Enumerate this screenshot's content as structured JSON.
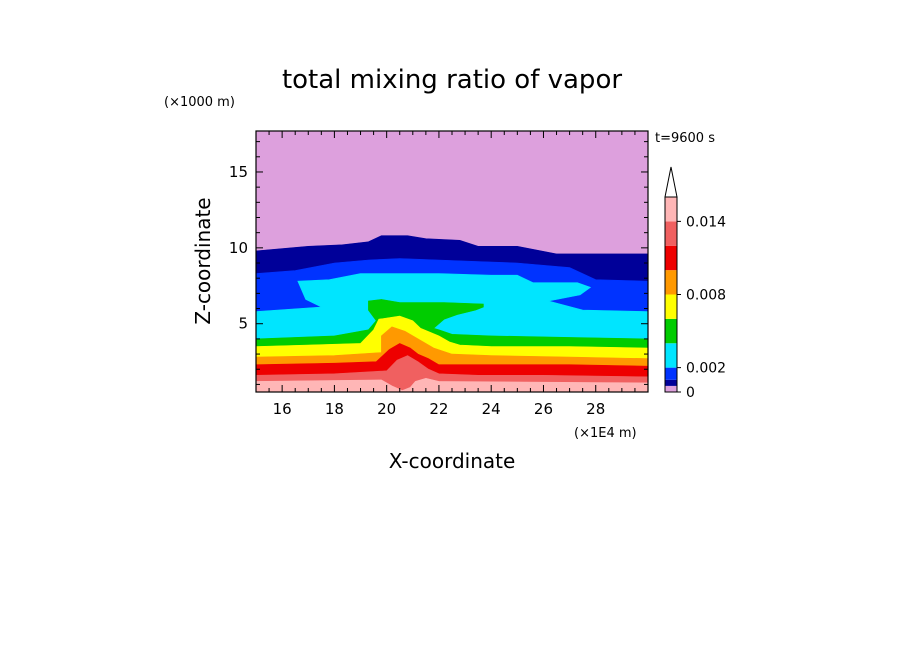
{
  "chart_data": {
    "type": "heatmap",
    "title": "total mixing ratio of vapor",
    "xlabel": "X-coordinate",
    "ylabel": "Z-coordinate",
    "x_unit": "(×1E4 m)",
    "y_unit": "(×1000 m)",
    "time_label": "t=9600 s",
    "xlim": [
      15,
      30
    ],
    "ylim": [
      0.5,
      17.7
    ],
    "x_ticks": [
      16,
      18,
      20,
      22,
      24,
      26,
      28
    ],
    "y_ticks": [
      5,
      10,
      15
    ],
    "grid": false,
    "legend": "colorbar-right",
    "colorbar": {
      "min": 0,
      "max": 0.016,
      "open_top": true,
      "tick_labels": [
        {
          "value": 0,
          "label": "0"
        },
        {
          "value": 0.002,
          "label": "0.002"
        },
        {
          "value": 0.008,
          "label": "0.008"
        },
        {
          "value": 0.014,
          "label": "0.014"
        }
      ],
      "bands": [
        {
          "from": 0,
          "to": 0.0005,
          "color": "#dda0dd"
        },
        {
          "from": 0.0005,
          "to": 0.001,
          "color": "#000099"
        },
        {
          "from": 0.001,
          "to": 0.002,
          "color": "#0033ff"
        },
        {
          "from": 0.002,
          "to": 0.004,
          "color": "#00e5ff"
        },
        {
          "from": 0.004,
          "to": 0.006,
          "color": "#00cc00"
        },
        {
          "from": 0.006,
          "to": 0.008,
          "color": "#ffff00"
        },
        {
          "from": 0.008,
          "to": 0.01,
          "color": "#ff9900"
        },
        {
          "from": 0.01,
          "to": 0.012,
          "color": "#ee0000"
        },
        {
          "from": 0.012,
          "to": 0.014,
          "color": "#f06060"
        },
        {
          "from": 0.014,
          "to": 0.016,
          "color": "#ffb6b6"
        }
      ]
    },
    "regions": [
      {
        "color": "#dda0dd",
        "points": [
          [
            15,
            0.5
          ],
          [
            30,
            0.5
          ],
          [
            30,
            17.7
          ],
          [
            15,
            17.7
          ]
        ]
      },
      {
        "color": "#000099",
        "points": [
          [
            15,
            0.5
          ],
          [
            30,
            0.5
          ],
          [
            30,
            9.6
          ],
          [
            26.5,
            9.6
          ],
          [
            25,
            10.1
          ],
          [
            23.5,
            10.1
          ],
          [
            22.8,
            10.5
          ],
          [
            21.5,
            10.6
          ],
          [
            20.8,
            10.8
          ],
          [
            19.8,
            10.8
          ],
          [
            19.3,
            10.4
          ],
          [
            18.3,
            10.2
          ],
          [
            17,
            10.1
          ],
          [
            15,
            9.8
          ]
        ]
      },
      {
        "color": "#0033ff",
        "points": [
          [
            15,
            0.5
          ],
          [
            30,
            0.5
          ],
          [
            30,
            7.8
          ],
          [
            28,
            7.9
          ],
          [
            27,
            8.7
          ],
          [
            25,
            9.0
          ],
          [
            23.5,
            9.1
          ],
          [
            22,
            9.2
          ],
          [
            20.5,
            9.3
          ],
          [
            19.3,
            9.2
          ],
          [
            18,
            9.0
          ],
          [
            16.5,
            8.5
          ],
          [
            15,
            8.3
          ]
        ]
      },
      {
        "color": "#00e5ff",
        "points": [
          [
            15,
            0.5
          ],
          [
            30,
            0.5
          ],
          [
            30,
            5.8
          ],
          [
            27.5,
            5.9
          ],
          [
            26.2,
            6.5
          ],
          [
            27.4,
            6.9
          ],
          [
            27.8,
            7.4
          ],
          [
            27.3,
            7.7
          ],
          [
            26.2,
            7.7
          ],
          [
            25.6,
            7.7
          ],
          [
            25,
            8.2
          ],
          [
            24,
            8.2
          ],
          [
            22,
            8.3
          ],
          [
            20.5,
            8.3
          ],
          [
            19,
            8.3
          ],
          [
            17.8,
            7.9
          ],
          [
            16.6,
            7.8
          ],
          [
            16.9,
            6.6
          ],
          [
            17.5,
            6.1
          ],
          [
            15,
            5.8
          ]
        ]
      },
      {
        "color": "#00cc00",
        "points": [
          [
            15,
            0.5
          ],
          [
            30,
            0.5
          ],
          [
            30,
            4.0
          ],
          [
            27,
            4.1
          ],
          [
            24,
            4.2
          ],
          [
            22.5,
            4.3
          ],
          [
            22,
            4.6
          ],
          [
            21.8,
            4.7
          ],
          [
            22.2,
            5.3
          ],
          [
            22.7,
            5.6
          ],
          [
            23.4,
            5.9
          ],
          [
            23.7,
            6.1
          ],
          [
            23.7,
            6.3
          ],
          [
            22.2,
            6.4
          ],
          [
            20.5,
            6.4
          ],
          [
            19.8,
            6.6
          ],
          [
            19.3,
            6.5
          ],
          [
            19.3,
            5.9
          ],
          [
            19.6,
            5.2
          ],
          [
            19.3,
            4.6
          ],
          [
            18,
            4.2
          ],
          [
            15,
            4.0
          ]
        ]
      },
      {
        "color": "#ffff00",
        "points": [
          [
            15,
            0.5
          ],
          [
            30,
            0.5
          ],
          [
            30,
            3.4
          ],
          [
            27,
            3.5
          ],
          [
            24,
            3.5
          ],
          [
            22.8,
            3.6
          ],
          [
            22.4,
            3.8
          ],
          [
            22,
            4.2
          ],
          [
            21.3,
            4.7
          ],
          [
            21,
            5.2
          ],
          [
            20.5,
            5.5
          ],
          [
            19.7,
            5.3
          ],
          [
            19.5,
            4.6
          ],
          [
            19,
            3.7
          ],
          [
            17,
            3.6
          ],
          [
            15,
            3.5
          ]
        ]
      },
      {
        "color": "#ff9900",
        "points": [
          [
            15,
            0.5
          ],
          [
            30,
            0.5
          ],
          [
            30,
            2.7
          ],
          [
            27,
            2.8
          ],
          [
            24,
            2.9
          ],
          [
            22.5,
            3.0
          ],
          [
            21.8,
            3.4
          ],
          [
            21.3,
            3.9
          ],
          [
            20.7,
            4.5
          ],
          [
            20.2,
            4.8
          ],
          [
            19.8,
            4.2
          ],
          [
            19.8,
            3.1
          ],
          [
            18,
            2.9
          ],
          [
            15,
            2.8
          ]
        ]
      },
      {
        "color": "#ee0000",
        "points": [
          [
            15,
            0.5
          ],
          [
            30,
            0.5
          ],
          [
            30,
            2.2
          ],
          [
            27,
            2.3
          ],
          [
            24,
            2.3
          ],
          [
            22,
            2.3
          ],
          [
            21.6,
            2.7
          ],
          [
            21.2,
            3.0
          ],
          [
            20.9,
            3.4
          ],
          [
            20.5,
            3.7
          ],
          [
            20.1,
            3.3
          ],
          [
            19.6,
            2.5
          ],
          [
            18,
            2.4
          ],
          [
            15,
            2.3
          ]
        ]
      },
      {
        "color": "#f06060",
        "points": [
          [
            15,
            0.5
          ],
          [
            30,
            0.5
          ],
          [
            30,
            1.5
          ],
          [
            26,
            1.6
          ],
          [
            23.5,
            1.6
          ],
          [
            22,
            1.7
          ],
          [
            21.6,
            2.0
          ],
          [
            21.2,
            2.5
          ],
          [
            20.8,
            2.9
          ],
          [
            20.4,
            2.6
          ],
          [
            20,
            1.9
          ],
          [
            18,
            1.7
          ],
          [
            15,
            1.6
          ]
        ]
      },
      {
        "color": "#ffb6b6",
        "points": [
          [
            15,
            0.5
          ],
          [
            30,
            0.5
          ],
          [
            30,
            1.1
          ],
          [
            22,
            1.2
          ],
          [
            21.5,
            1.4
          ],
          [
            21.1,
            1.2
          ],
          [
            20.9,
            0.8
          ],
          [
            20.6,
            0.6
          ],
          [
            20.2,
            0.9
          ],
          [
            19.8,
            1.3
          ],
          [
            15,
            1.2
          ]
        ]
      }
    ]
  }
}
